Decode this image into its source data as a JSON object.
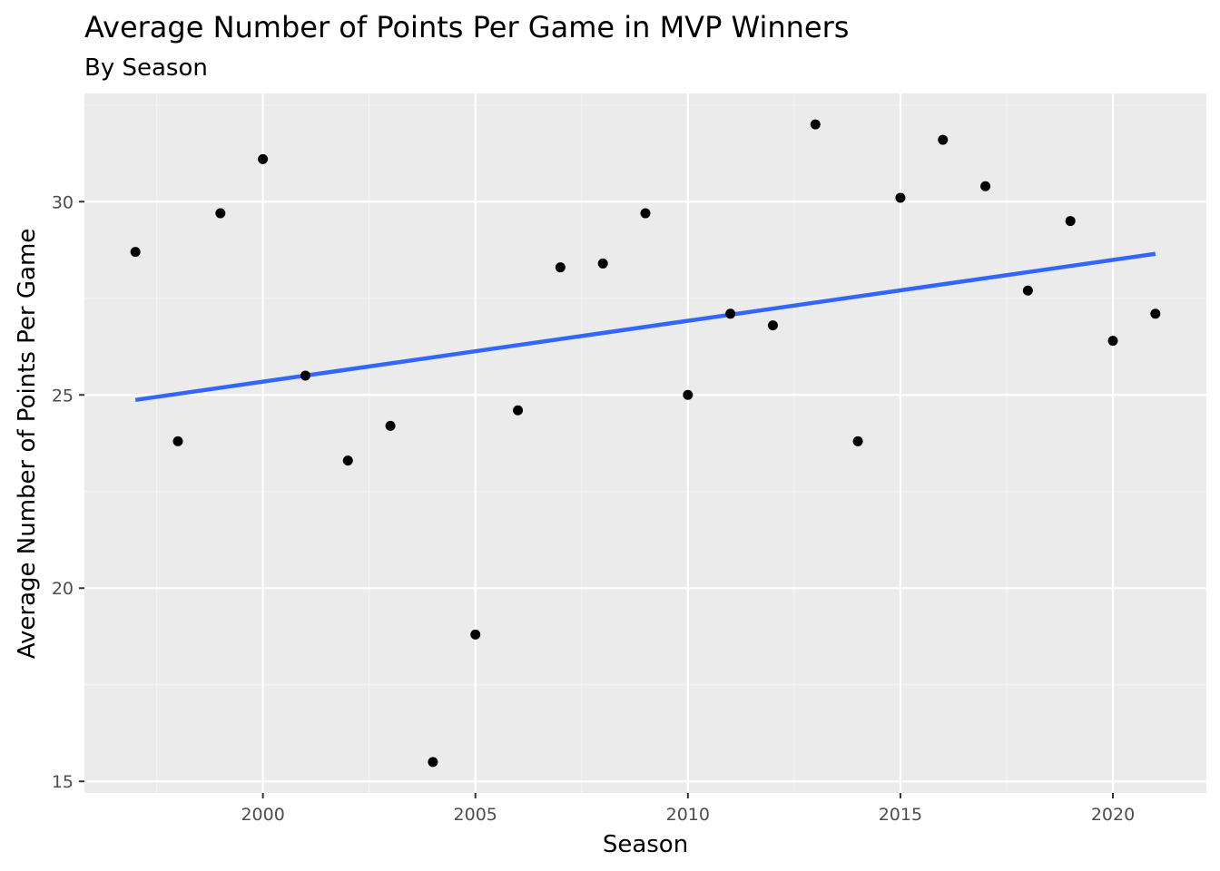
{
  "chart_data": {
    "type": "scatter",
    "title": "Average Number of Points Per Game in MVP Winners",
    "subtitle": "By Season",
    "xlabel": "Season",
    "ylabel": "Average Number of Points Per Game",
    "xlim": [
      1995.8,
      2022.2
    ],
    "ylim": [
      14.7,
      32.8
    ],
    "x_ticks": [
      2000,
      2005,
      2010,
      2015,
      2020
    ],
    "x_tick_labels": [
      "2000",
      "2005",
      "2010",
      "2015",
      "2020"
    ],
    "y_ticks": [
      15,
      20,
      25,
      30
    ],
    "y_tick_labels": [
      "15",
      "20",
      "25",
      "30"
    ],
    "grid": true,
    "points": {
      "x": [
        1997,
        1998,
        1999,
        2000,
        2001,
        2002,
        2003,
        2004,
        2005,
        2006,
        2007,
        2008,
        2009,
        2010,
        2011,
        2012,
        2013,
        2014,
        2015,
        2016,
        2017,
        2018,
        2019,
        2020,
        2021
      ],
      "y": [
        28.7,
        23.8,
        29.7,
        31.1,
        25.5,
        23.3,
        24.2,
        15.5,
        18.8,
        24.6,
        28.3,
        28.4,
        29.7,
        25.0,
        27.1,
        26.8,
        32.0,
        23.8,
        30.1,
        31.6,
        30.4,
        27.7,
        29.5,
        26.4,
        27.1
      ]
    },
    "trend_line": {
      "method": "linear",
      "x": [
        1997,
        2021
      ],
      "y": [
        24.87,
        28.65
      ]
    },
    "colors": {
      "panel_background": "#ebebeb",
      "grid_major": "#ffffff",
      "grid_minor": "#f5f5f5",
      "points": "#000000",
      "trend_line": "#3366ff",
      "tick_text": "#4d4d4d"
    }
  }
}
